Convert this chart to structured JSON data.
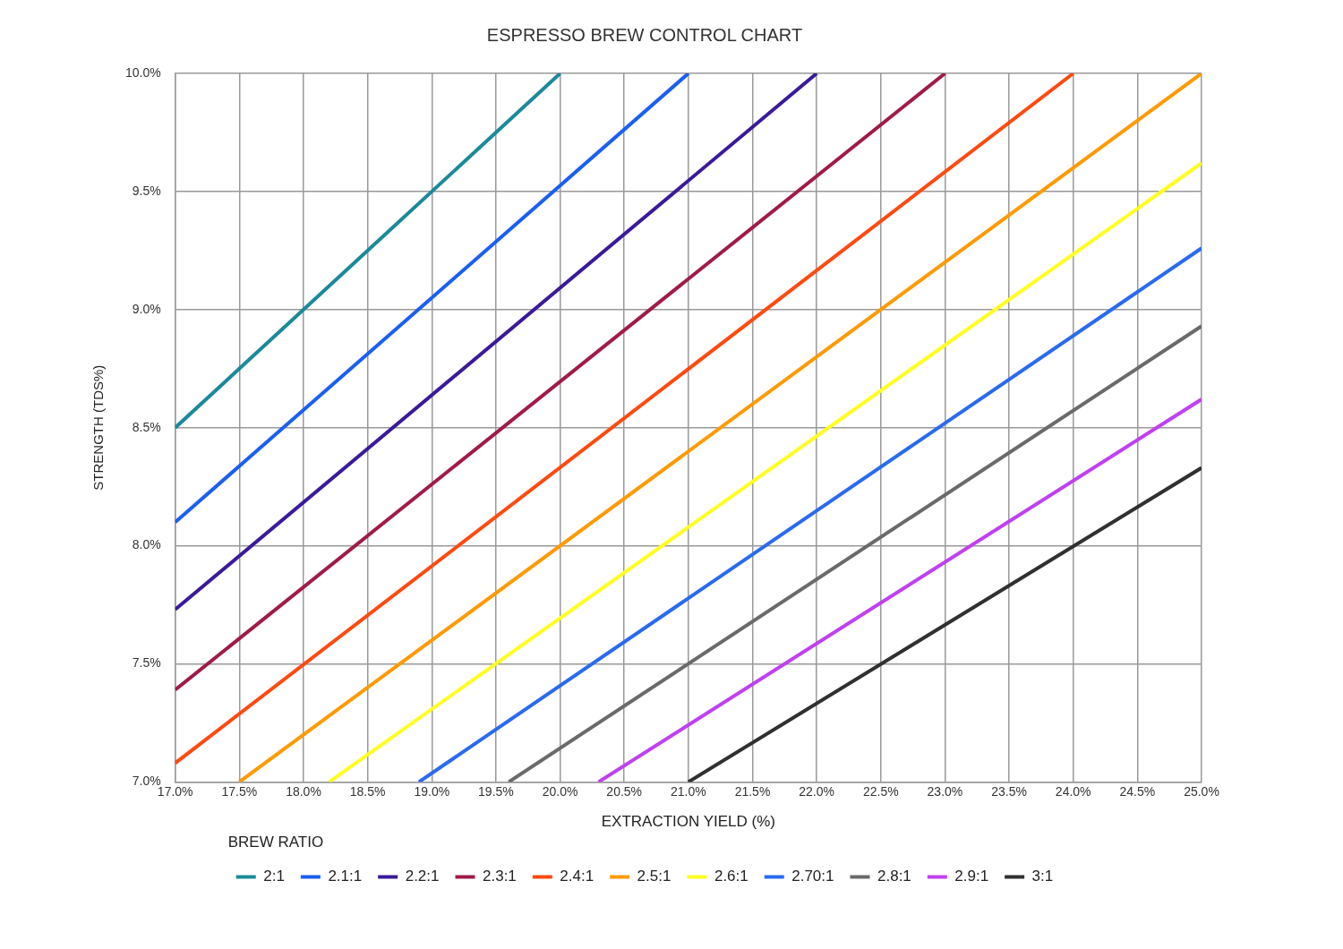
{
  "chart_data": {
    "type": "line",
    "title": "ESPRESSO BREW CONTROL CHART",
    "xlabel": "EXTRACTION YIELD (%)",
    "ylabel": "STRENGTH (TDS%)",
    "legend_title": "BREW RATIO",
    "xlim": [
      17,
      25
    ],
    "ylim": [
      7,
      10
    ],
    "xticks": [
      {
        "value": 17,
        "label": "17.0%"
      },
      {
        "value": 17.5,
        "label": "17.5%"
      },
      {
        "value": 18,
        "label": "18.0%"
      },
      {
        "value": 18.5,
        "label": "18.5%"
      },
      {
        "value": 19,
        "label": "19.0%"
      },
      {
        "value": 19.5,
        "label": "19.5%"
      },
      {
        "value": 20,
        "label": "20.0%"
      },
      {
        "value": 20.5,
        "label": "20.5%"
      },
      {
        "value": 21,
        "label": "21.0%"
      },
      {
        "value": 21.5,
        "label": "21.5%"
      },
      {
        "value": 22,
        "label": "22.0%"
      },
      {
        "value": 22.5,
        "label": "22.5%"
      },
      {
        "value": 23,
        "label": "23.0%"
      },
      {
        "value": 23.5,
        "label": "23.5%"
      },
      {
        "value": 24,
        "label": "24.0%"
      },
      {
        "value": 24.5,
        "label": "24.5%"
      },
      {
        "value": 25,
        "label": "25.0%"
      }
    ],
    "yticks": [
      {
        "value": 7,
        "label": "7.0%"
      },
      {
        "value": 7.5,
        "label": "7.5%"
      },
      {
        "value": 8,
        "label": "8.0%"
      },
      {
        "value": 8.5,
        "label": "8.5%"
      },
      {
        "value": 9,
        "label": "9.0%"
      },
      {
        "value": 9.5,
        "label": "9.5%"
      },
      {
        "value": 10,
        "label": "10.0%"
      }
    ],
    "grid": true,
    "legend": "bottom",
    "marker": "none",
    "line_style": "solid",
    "series": [
      {
        "name": "2:1",
        "color": "#1a8a9a",
        "x": [
          17,
          20
        ],
        "values": [
          8.5,
          10
        ]
      },
      {
        "name": "2.1:1",
        "color": "#1a5ff0",
        "x": [
          17,
          21
        ],
        "values": [
          8.1,
          10
        ]
      },
      {
        "name": "2.2:1",
        "color": "#3a1a9a",
        "x": [
          17,
          22
        ],
        "values": [
          7.73,
          10
        ]
      },
      {
        "name": "2.3:1",
        "color": "#a01a4a",
        "x": [
          17,
          23
        ],
        "values": [
          7.39,
          10
        ]
      },
      {
        "name": "2.4:1",
        "color": "#ff4a10",
        "x": [
          17,
          24
        ],
        "values": [
          7.08,
          10
        ]
      },
      {
        "name": "2.5:1",
        "color": "#ff9a00",
        "x": [
          17.5,
          25
        ],
        "values": [
          7,
          10
        ]
      },
      {
        "name": "2.6:1",
        "color": "#ffff20",
        "x": [
          18.2,
          25
        ],
        "values": [
          7,
          9.62
        ]
      },
      {
        "name": "2.70:1",
        "color": "#2a6af0",
        "x": [
          18.9,
          25
        ],
        "values": [
          7,
          9.26
        ]
      },
      {
        "name": "2.8:1",
        "color": "#6a6a6a",
        "x": [
          19.6,
          25
        ],
        "values": [
          7,
          8.93
        ]
      },
      {
        "name": "2.9:1",
        "color": "#c040f0",
        "x": [
          20.3,
          25
        ],
        "values": [
          7,
          8.62
        ]
      },
      {
        "name": "3:1",
        "color": "#303030",
        "x": [
          21,
          25
        ],
        "values": [
          7,
          8.33
        ]
      }
    ]
  }
}
